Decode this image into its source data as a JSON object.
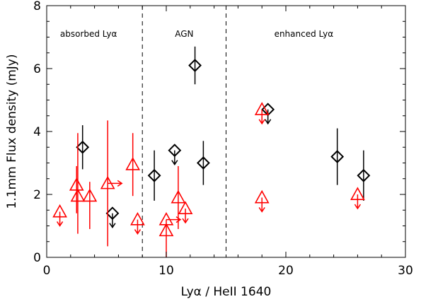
{
  "chart_data": {
    "type": "scatter",
    "xlabel": "Lyα / HeII 1640",
    "ylabel": "1.1mm Flux density (mJy)",
    "xlim": [
      0,
      30
    ],
    "ylim": [
      0,
      8
    ],
    "x_ticks": [
      0,
      10,
      20,
      30
    ],
    "y_ticks": [
      0,
      2,
      4,
      6,
      8
    ],
    "grid": false,
    "region_boundaries": [
      8,
      15
    ],
    "regions": [
      {
        "label": "absorbed Lyα",
        "x_center": 3.5
      },
      {
        "label": "AGN",
        "x_center": 11.5
      },
      {
        "label": "enhanced Lyα",
        "x_center": 21.5
      }
    ],
    "colors": {
      "black_points": "#000000",
      "red_points": "#ff0000",
      "region_divider": "#000000"
    },
    "series": [
      {
        "marker": "diamond",
        "color": "#000000",
        "points": [
          {
            "x": 3.0,
            "y": 3.5,
            "err": [
              2.8,
              4.2
            ]
          },
          {
            "x": 5.5,
            "y": 1.4,
            "upper_limit": true
          },
          {
            "x": 9.0,
            "y": 2.6,
            "err": [
              1.8,
              3.4
            ]
          },
          {
            "x": 10.7,
            "y": 3.4,
            "upper_limit": true
          },
          {
            "x": 12.4,
            "y": 6.1,
            "err": [
              5.5,
              6.7
            ]
          },
          {
            "x": 13.1,
            "y": 3.0,
            "err": [
              2.3,
              3.7
            ]
          },
          {
            "x": 18.5,
            "y": 4.7,
            "upper_limit": true
          },
          {
            "x": 24.3,
            "y": 3.2,
            "err": [
              2.3,
              4.1
            ]
          },
          {
            "x": 26.5,
            "y": 2.6,
            "err": [
              1.8,
              3.4
            ]
          }
        ]
      },
      {
        "marker": "triangle",
        "color": "#ff0000",
        "points": [
          {
            "x": 1.1,
            "y": 1.45,
            "upper_limit": true
          },
          {
            "x": 2.5,
            "y": 2.3,
            "err": [
              1.4,
              2.9
            ]
          },
          {
            "x": 2.6,
            "y": 1.95,
            "err": [
              0.75,
              3.95
            ]
          },
          {
            "x": 3.6,
            "y": 1.95,
            "err": [
              0.9,
              2.4
            ]
          },
          {
            "x": 5.1,
            "y": 2.35,
            "err": [
              0.35,
              4.35
            ],
            "right_limit": true
          },
          {
            "x": 7.2,
            "y": 2.95,
            "err": [
              1.95,
              3.95
            ]
          },
          {
            "x": 7.6,
            "y": 1.2,
            "upper_limit": true
          },
          {
            "x": 10.0,
            "y": 0.85,
            "err": [
              0.0,
              1.2
            ]
          },
          {
            "x": 10.0,
            "y": 1.2,
            "right_limit": true
          },
          {
            "x": 11.0,
            "y": 1.9,
            "err": [
              0.9,
              2.9
            ]
          },
          {
            "x": 11.6,
            "y": 1.55,
            "upper_limit": true
          },
          {
            "x": 18.0,
            "y": 1.9,
            "upper_limit": true
          },
          {
            "x": 18.0,
            "y": 4.7,
            "upper_limit": true
          },
          {
            "x": 26.0,
            "y": 2.0,
            "upper_limit": true
          }
        ]
      }
    ]
  }
}
